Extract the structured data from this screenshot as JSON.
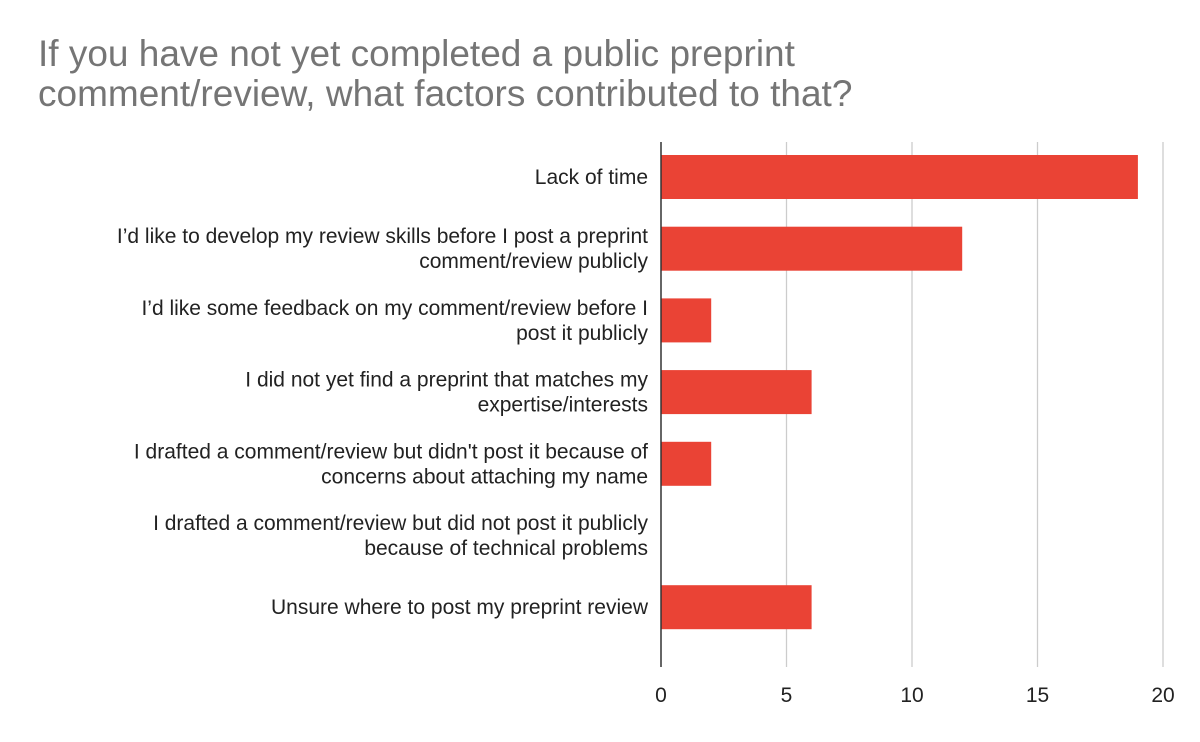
{
  "chart_data": {
    "type": "bar",
    "orientation": "horizontal",
    "title": "If you have not yet completed a public preprint comment/review, what factors contributed to that?",
    "title_lines": [
      "If you have not yet completed a public preprint",
      "comment/review, what factors contributed to that?"
    ],
    "categories": [
      [
        "Lack of time"
      ],
      [
        "I’d like to develop my review skills before I post a preprint",
        "comment/review publicly"
      ],
      [
        "I’d like some feedback on my comment/review before I",
        "post it publicly"
      ],
      [
        "I did not yet find a preprint that matches my",
        "expertise/interests"
      ],
      [
        "I drafted a comment/review but didn't post it because of",
        "concerns about attaching my name"
      ],
      [
        "I drafted a comment/review but did not post it publicly",
        "because of technical problems"
      ],
      [
        "Unsure where to post my preprint review"
      ]
    ],
    "values": [
      19,
      12,
      2,
      6,
      2,
      0,
      6
    ],
    "xlim": [
      0,
      20
    ],
    "x_ticks": [
      "0",
      "5",
      "10",
      "15",
      "20"
    ],
    "grid": true,
    "legend": "none",
    "bar_color": "#ea4335",
    "grid_color": "#cccccc",
    "axis_color": "#333333"
  }
}
